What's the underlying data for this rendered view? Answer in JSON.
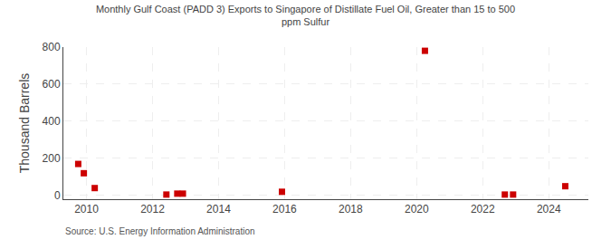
{
  "chart_data": {
    "type": "scatter",
    "title": "Monthly Gulf Coast (PADD 3) Exports to Singapore of Distillate Fuel Oil, Greater than 15 to 500\nppm Sulfur",
    "y_label": "Thousand Barrels",
    "annotations": [
      "Source: U.S. Energy Information Administration"
    ],
    "x": [
      2009.75,
      2009.92,
      2010.25,
      2012.42,
      2012.75,
      2012.92,
      2015.92,
      2020.25,
      2022.67,
      2022.92,
      2024.5
    ],
    "values": [
      170,
      120,
      40,
      5,
      10,
      10,
      20,
      780,
      5,
      5,
      50
    ],
    "color": "#cc0000",
    "marker": "square",
    "xlim": [
      2009.3,
      2025.2
    ],
    "xticks": [
      2010,
      2012,
      2014,
      2016,
      2018,
      2020,
      2022,
      2024
    ],
    "ylim": [
      -20,
      800
    ],
    "yticks": [
      0,
      200,
      400,
      600,
      800
    ],
    "grid": true
  }
}
